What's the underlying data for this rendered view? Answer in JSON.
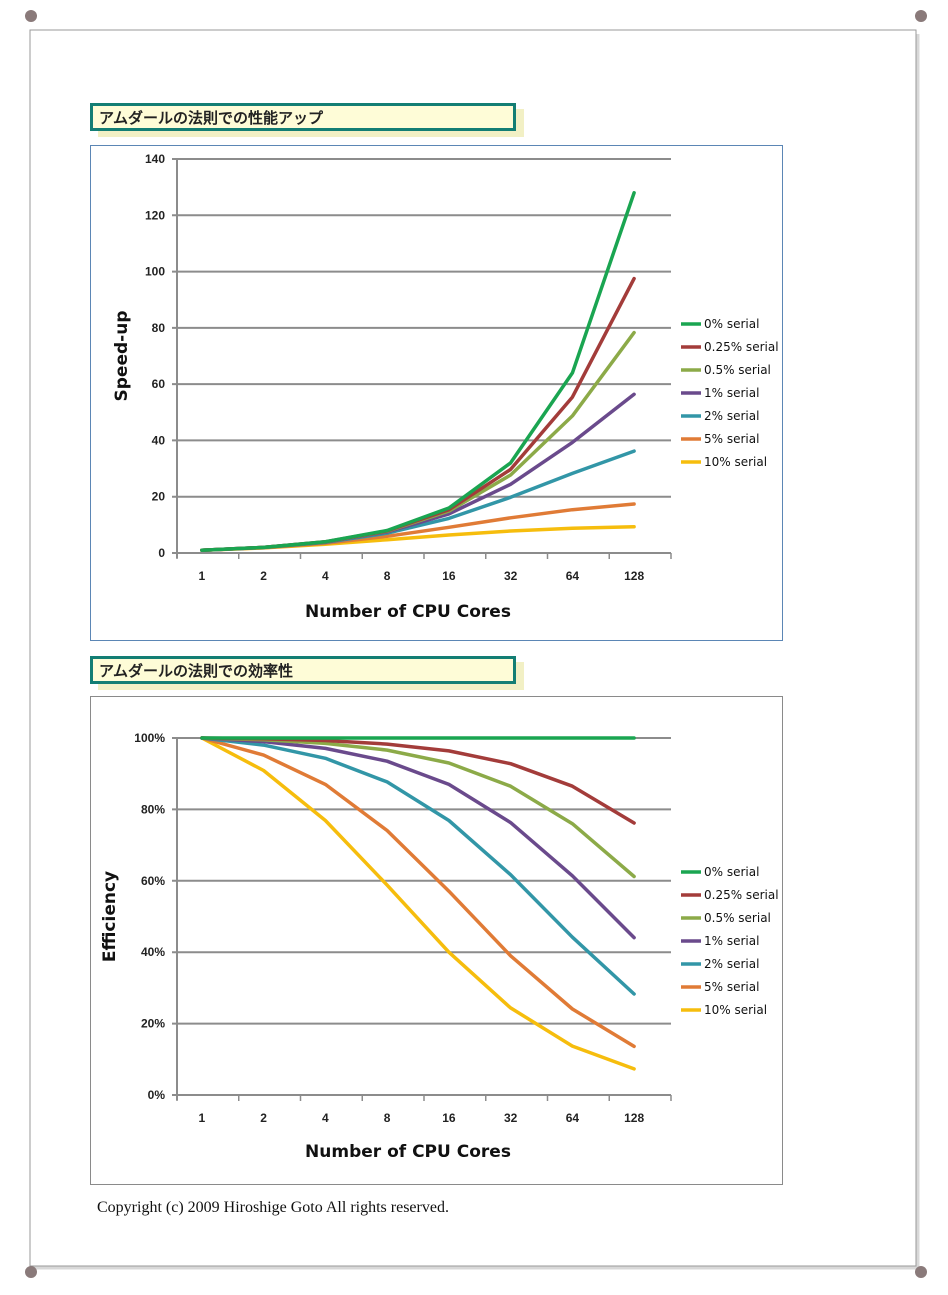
{
  "charts_titles": {
    "speedup": "アムダールの法則での性能アップ",
    "efficiency": "アムダールの法則での効率性"
  },
  "copyright": "Copyright (c) 2009 Hiroshige Goto All rights reserved.",
  "colors": {
    "frame": "#9a9a9a",
    "title_border": "#137e74",
    "title_bg": "#fefcd7",
    "chart1_border": "#5b86b5",
    "grid": "#8c8c8c"
  },
  "chart_data": [
    {
      "type": "line",
      "title": "アムダールの法則での性能アップ",
      "xlabel": "Number of CPU Cores",
      "ylabel": "Speed-up",
      "categories": [
        "1",
        "2",
        "4",
        "8",
        "16",
        "32",
        "64",
        "128"
      ],
      "ylim": [
        0,
        140
      ],
      "yticks": [
        0,
        20,
        40,
        60,
        80,
        100,
        120,
        140
      ],
      "ytick_labels": [
        "0",
        "20",
        "40",
        "60",
        "80",
        "100",
        "120",
        "140"
      ],
      "grid": true,
      "legend_position": "right",
      "series": [
        {
          "name": "0% serial",
          "color": "#1aa551",
          "values": [
            1,
            2,
            4,
            8,
            16,
            32,
            64,
            128
          ]
        },
        {
          "name": "0.25% serial",
          "color": "#a33c3a",
          "values": [
            1,
            2.0,
            3.97,
            7.86,
            15.4,
            29.7,
            55.4,
            97.5
          ]
        },
        {
          "name": "0.5% serial",
          "color": "#8caa48",
          "values": [
            1,
            1.99,
            3.94,
            7.73,
            14.9,
            27.7,
            48.7,
            78.3
          ]
        },
        {
          "name": "1% serial",
          "color": "#6a4a8c",
          "values": [
            1,
            1.98,
            3.88,
            7.48,
            13.9,
            24.4,
            39.3,
            56.4
          ]
        },
        {
          "name": "2% serial",
          "color": "#3296a7",
          "values": [
            1,
            1.96,
            3.77,
            7.02,
            12.3,
            19.8,
            28.3,
            36.2
          ]
        },
        {
          "name": "5% serial",
          "color": "#e07b36",
          "values": [
            1,
            1.9,
            3.48,
            5.93,
            9.14,
            12.5,
            15.4,
            17.4
          ]
        },
        {
          "name": "10% serial",
          "color": "#f6bd0d",
          "values": [
            1,
            1.82,
            3.08,
            4.71,
            6.4,
            7.8,
            8.77,
            9.34
          ]
        }
      ]
    },
    {
      "type": "line",
      "title": "アムダールの法則での効率性",
      "xlabel": "Number of CPU Cores",
      "ylabel": "Efficiency",
      "categories": [
        "1",
        "2",
        "4",
        "8",
        "16",
        "32",
        "64",
        "128"
      ],
      "ylim": [
        0,
        100
      ],
      "yticks": [
        0,
        20,
        40,
        60,
        80,
        100
      ],
      "ytick_labels": [
        "0%",
        "20%",
        "40%",
        "60%",
        "80%",
        "100%"
      ],
      "grid": true,
      "legend_position": "right",
      "series": [
        {
          "name": "0% serial",
          "color": "#1aa551",
          "values": [
            100,
            100,
            100,
            100,
            100,
            100,
            100,
            100
          ]
        },
        {
          "name": "0.25% serial",
          "color": "#a33c3a",
          "values": [
            100,
            99.8,
            99.3,
            98.3,
            96.4,
            92.8,
            86.5,
            76.2
          ]
        },
        {
          "name": "0.5% serial",
          "color": "#8caa48",
          "values": [
            100,
            99.5,
            98.5,
            96.6,
            93.0,
            86.5,
            76.0,
            61.2
          ]
        },
        {
          "name": "1% serial",
          "color": "#6a4a8c",
          "values": [
            100,
            99.0,
            97.1,
            93.5,
            87.0,
            76.3,
            61.4,
            44.1
          ]
        },
        {
          "name": "2% serial",
          "color": "#3296a7",
          "values": [
            100,
            98.0,
            94.3,
            87.7,
            76.9,
            61.7,
            44.2,
            28.3
          ]
        },
        {
          "name": "5% serial",
          "color": "#e07b36",
          "values": [
            100,
            95.2,
            87.0,
            74.1,
            57.1,
            39.0,
            24.1,
            13.6
          ]
        },
        {
          "name": "10% serial",
          "color": "#f6bd0d",
          "values": [
            100,
            90.9,
            76.9,
            58.8,
            40.0,
            24.4,
            13.7,
            7.3
          ]
        }
      ]
    }
  ]
}
